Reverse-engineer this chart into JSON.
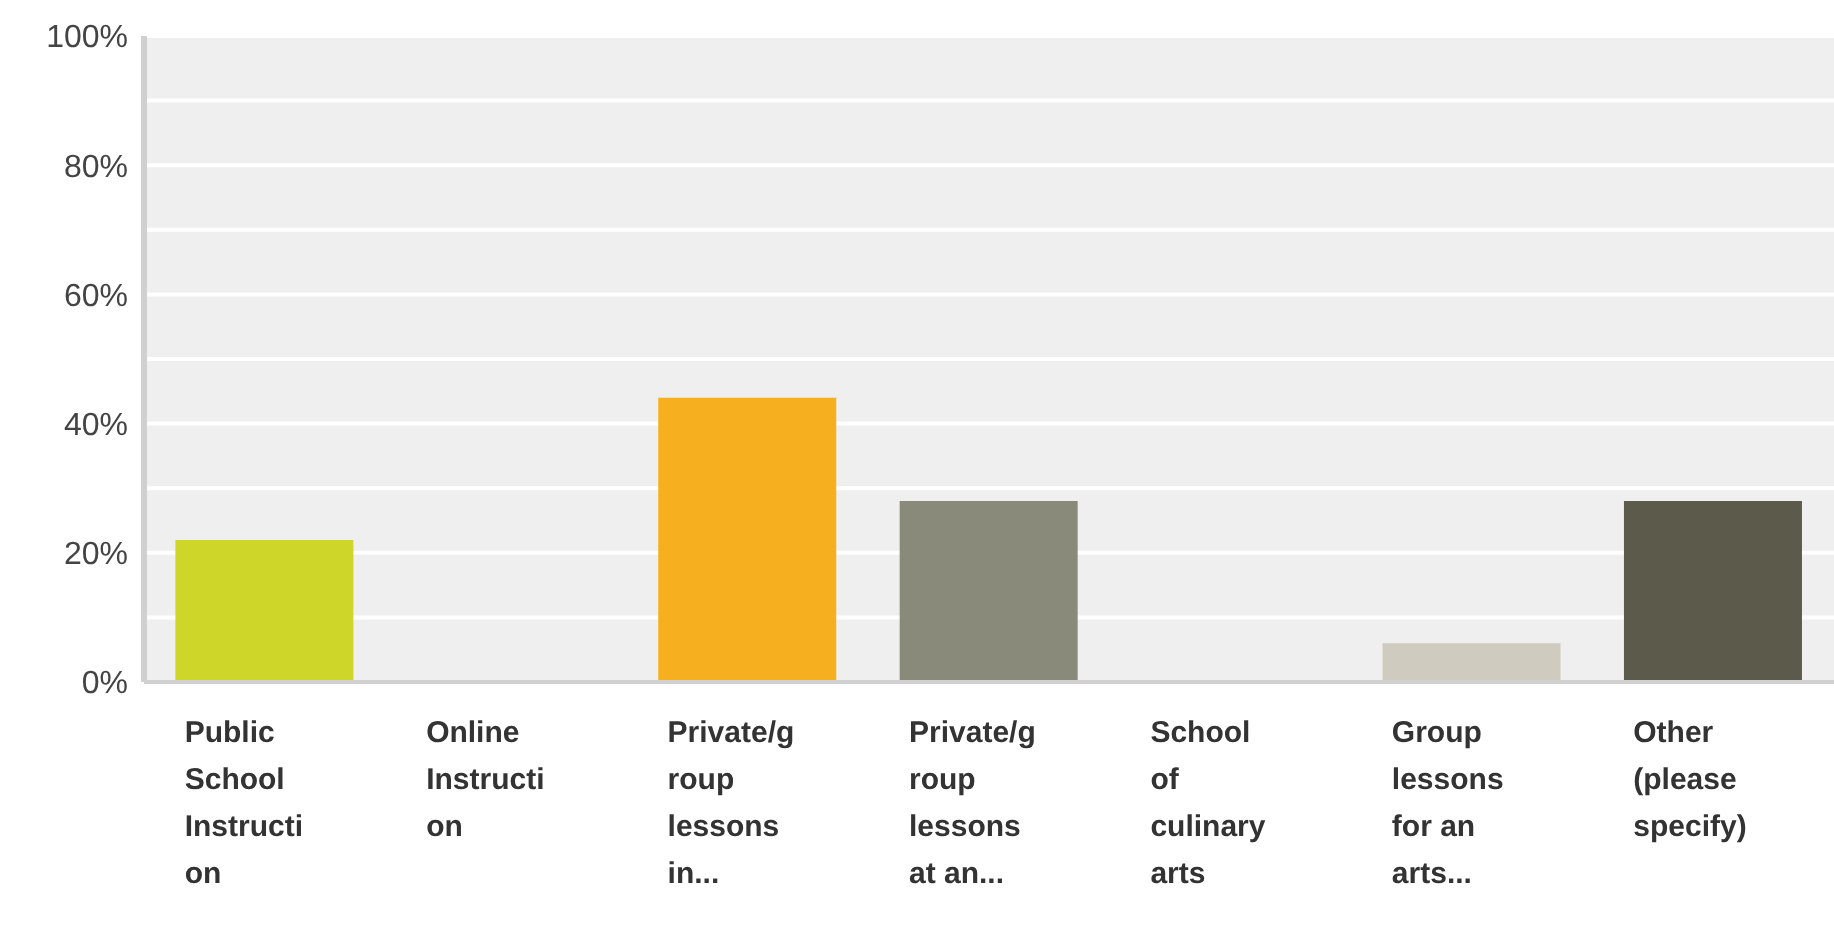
{
  "chart_data": {
    "type": "bar",
    "categories": [
      "Public School Instruction",
      "Online Instruction",
      "Private/group lessons in...",
      "Private/group lessons at an...",
      "School of culinary arts",
      "Group lessons for an arts...",
      "Other (please specify)"
    ],
    "values": [
      22,
      0,
      44,
      28,
      0,
      6,
      28
    ],
    "colors": [
      "#cfd62a",
      null,
      "#f6af1f",
      "#898a7a",
      null,
      "#cfccbf",
      "#5b5a4b"
    ],
    "ylim": [
      0,
      100
    ],
    "yticks": [
      {
        "value": 0,
        "label": "0%"
      },
      {
        "value": 10,
        "label": null
      },
      {
        "value": 20,
        "label": "20%"
      },
      {
        "value": 30,
        "label": null
      },
      {
        "value": 40,
        "label": "40%"
      },
      {
        "value": 50,
        "label": null
      },
      {
        "value": 60,
        "label": "60%"
      },
      {
        "value": 70,
        "label": null
      },
      {
        "value": 80,
        "label": "80%"
      },
      {
        "value": 90,
        "label": null
      },
      {
        "value": 100,
        "label": "100%"
      }
    ],
    "grid": "y",
    "legend": false
  }
}
